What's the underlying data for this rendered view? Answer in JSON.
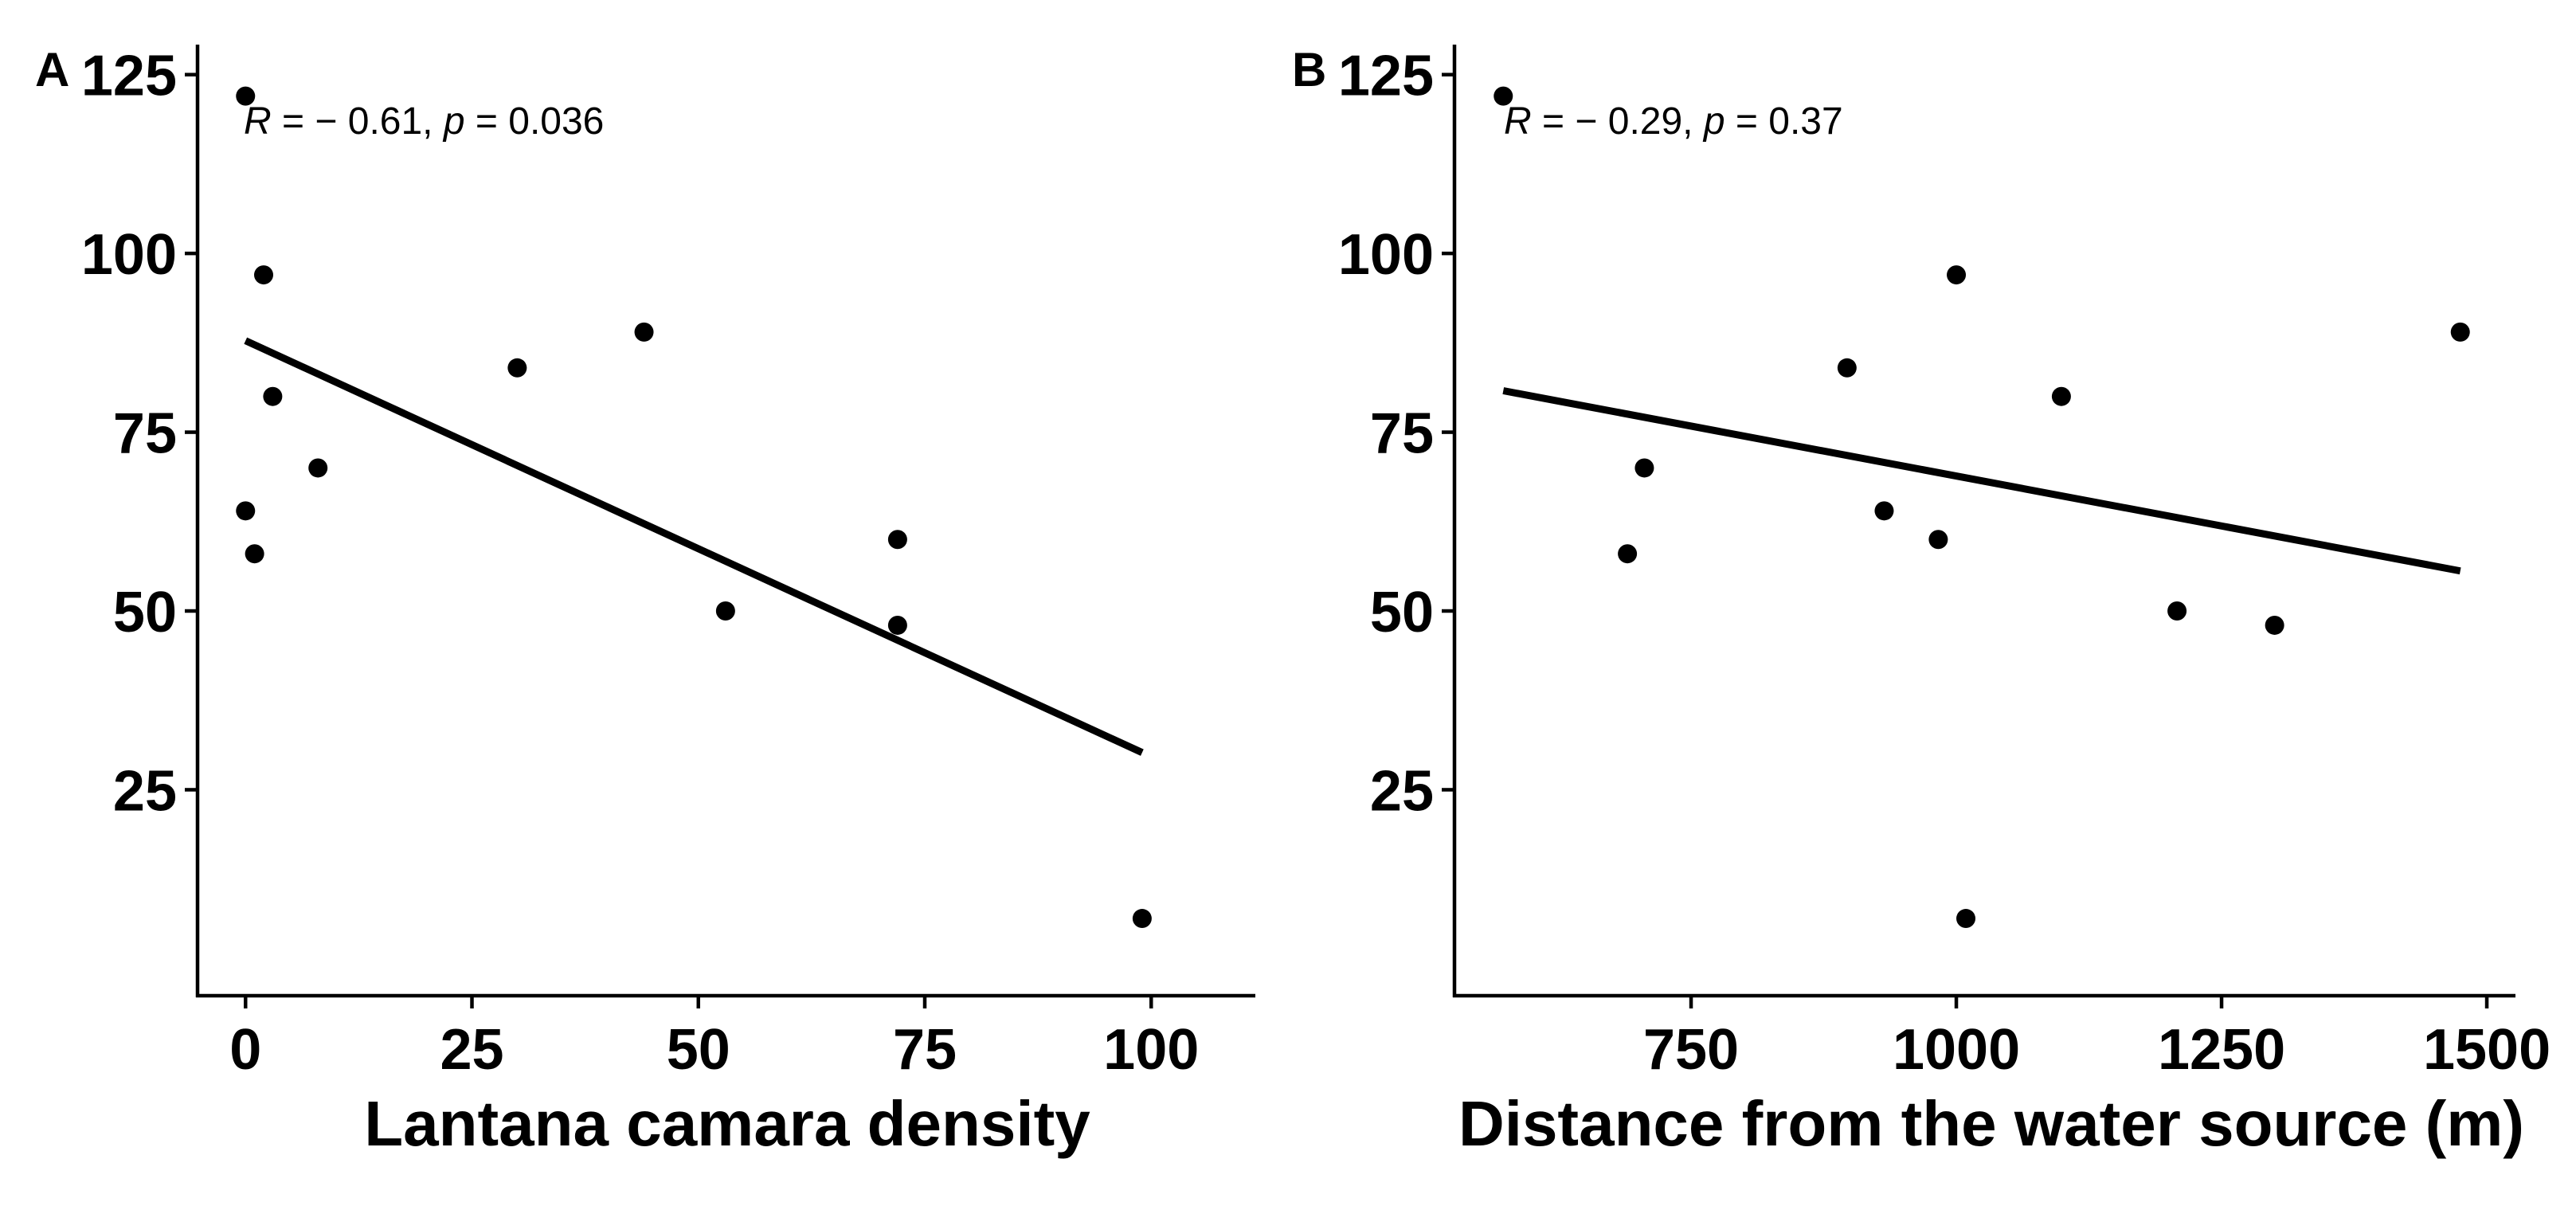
{
  "chart_data": [
    {
      "panel": "A",
      "type": "scatter",
      "title": "",
      "xlabel": "Lantana camara density",
      "ylabel": "",
      "xlim": [
        -5.3,
        111.5
      ],
      "ylim": [
        -3.8,
        129.2
      ],
      "xticks": [
        0,
        25,
        50,
        75,
        100
      ],
      "yticks": [
        25,
        50,
        75,
        100,
        125
      ],
      "annotation": {
        "r_symbol": "R",
        "r_text": " = − 0.61, ",
        "p_symbol": "p",
        "p_text": " = 0.036"
      },
      "points": [
        {
          "x": 0,
          "y": 122
        },
        {
          "x": 0,
          "y": 64
        },
        {
          "x": 1,
          "y": 58
        },
        {
          "x": 2,
          "y": 97
        },
        {
          "x": 3,
          "y": 80
        },
        {
          "x": 8,
          "y": 70
        },
        {
          "x": 30,
          "y": 84
        },
        {
          "x": 44,
          "y": 89
        },
        {
          "x": 53,
          "y": 50
        },
        {
          "x": 72,
          "y": 60
        },
        {
          "x": 72,
          "y": 48
        },
        {
          "x": 99,
          "y": 7
        }
      ],
      "fit": {
        "x": [
          0,
          99
        ],
        "y": [
          87.8,
          30.2
        ]
      }
    },
    {
      "panel": "B",
      "type": "scatter",
      "title": "",
      "xlabel": "Distance from the water source (m)",
      "ylabel": "",
      "xlim": [
        527,
        1527
      ],
      "ylim": [
        -3.8,
        129.2
      ],
      "xticks": [
        750,
        1000,
        1250,
        1500
      ],
      "yticks": [
        25,
        50,
        75,
        100,
        125
      ],
      "annotation": {
        "r_symbol": "R",
        "r_text": " = − 0.29, ",
        "p_symbol": "p",
        "p_text": " = 0.37"
      },
      "points": [
        {
          "x": 573,
          "y": 122
        },
        {
          "x": 690,
          "y": 58
        },
        {
          "x": 706,
          "y": 70
        },
        {
          "x": 897,
          "y": 84
        },
        {
          "x": 932,
          "y": 64
        },
        {
          "x": 983,
          "y": 60
        },
        {
          "x": 1000,
          "y": 97
        },
        {
          "x": 1009,
          "y": 7
        },
        {
          "x": 1099,
          "y": 80
        },
        {
          "x": 1208,
          "y": 50
        },
        {
          "x": 1300,
          "y": 48
        },
        {
          "x": 1475,
          "y": 89
        }
      ],
      "fit": {
        "x": [
          573,
          1475
        ],
        "y": [
          80.8,
          55.6
        ]
      }
    }
  ]
}
